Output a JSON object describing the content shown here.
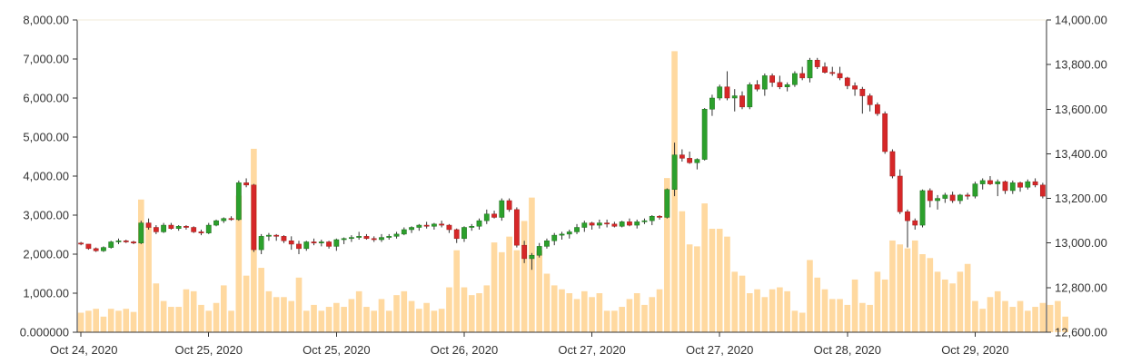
{
  "chart_data": {
    "type": "candlestick",
    "grid": false,
    "legend": "none",
    "colors": {
      "up": "#2ca02c",
      "down": "#d62728",
      "wick": "#333333",
      "volume": "#ffd9a0",
      "axis": "#333333"
    },
    "y_left": {
      "range": [
        0,
        8000
      ],
      "ticks": [
        "0.000000",
        "1,000.00",
        "2,000.00",
        "3,000.00",
        "4,000.00",
        "5,000.00",
        "6,000.00",
        "7,000.00",
        "8,000.00"
      ],
      "series": "volume"
    },
    "y_right": {
      "range": [
        12600,
        14000
      ],
      "ticks": [
        "12,600.00",
        "12,800.00",
        "13,000.00",
        "13,200.00",
        "13,400.00",
        "13,600.00",
        "13,800.00",
        "14,000.00"
      ],
      "series": "price"
    },
    "x_ticks": [
      "Oct 24, 2020",
      "Oct 25, 2020",
      "Oct 25, 2020",
      "Oct 26, 2020",
      "Oct 27, 2020",
      "Oct 27, 2020",
      "Oct 28, 2020",
      "Oct 29, 2020"
    ],
    "volume": [
      500,
      550,
      600,
      400,
      600,
      550,
      600,
      520,
      3400,
      2700,
      1250,
      800,
      650,
      650,
      1100,
      1050,
      700,
      550,
      750,
      1200,
      550,
      3500,
      1450,
      4700,
      1650,
      1050,
      900,
      900,
      800,
      1400,
      550,
      700,
      550,
      650,
      750,
      650,
      850,
      1050,
      650,
      550,
      850,
      550,
      950,
      1050,
      800,
      600,
      750,
      550,
      600,
      1150,
      2100,
      1150,
      950,
      1000,
      1200,
      2300,
      2050,
      2450,
      2100,
      2850,
      3450,
      2100,
      1500,
      1200,
      1100,
      1000,
      850,
      1050,
      900,
      1000,
      550,
      550,
      650,
      850,
      1000,
      700,
      900,
      1100,
      3950,
      7200,
      3100,
      2250,
      2200,
      3300,
      2650,
      2650,
      2450,
      1550,
      1450,
      1000,
      1100,
      900,
      1100,
      1150,
      1050,
      550,
      500,
      1850,
      1400,
      1100,
      850,
      850,
      700,
      1350,
      750,
      700,
      1550,
      1350,
      2350,
      2250,
      2150,
      2350,
      2000,
      1900,
      1550,
      1350,
      1250,
      1550,
      1750,
      800,
      600,
      900,
      1050,
      800,
      650,
      800,
      550,
      650,
      750,
      700,
      800,
      400
    ],
    "ohlc": [
      [
        13000,
        13005,
        12990,
        12995
      ],
      [
        12995,
        12995,
        12970,
        12975
      ],
      [
        12975,
        12980,
        12960,
        12965
      ],
      [
        12965,
        12985,
        12960,
        12980
      ],
      [
        12980,
        13010,
        12975,
        13005
      ],
      [
        13005,
        13020,
        12995,
        13010
      ],
      [
        13010,
        13015,
        13000,
        13005
      ],
      [
        13005,
        13010,
        12995,
        13000
      ],
      [
        13000,
        13100,
        12995,
        13090
      ],
      [
        13090,
        13110,
        13060,
        13070
      ],
      [
        13070,
        13080,
        13040,
        13050
      ],
      [
        13050,
        13090,
        13045,
        13080
      ],
      [
        13080,
        13090,
        13060,
        13065
      ],
      [
        13065,
        13080,
        13055,
        13075
      ],
      [
        13075,
        13080,
        13060,
        13070
      ],
      [
        13070,
        13075,
        13045,
        13050
      ],
      [
        13050,
        13060,
        13035,
        13045
      ],
      [
        13045,
        13090,
        13040,
        13080
      ],
      [
        13080,
        13105,
        13075,
        13100
      ],
      [
        13100,
        13115,
        13090,
        13110
      ],
      [
        13110,
        13120,
        13100,
        13105
      ],
      [
        13105,
        13280,
        13100,
        13270
      ],
      [
        13270,
        13290,
        13250,
        13260
      ],
      [
        13260,
        13265,
        12960,
        12970
      ],
      [
        12970,
        13040,
        12950,
        13030
      ],
      [
        13030,
        13045,
        13010,
        13035
      ],
      [
        13035,
        13040,
        13010,
        13030
      ],
      [
        13030,
        13035,
        13000,
        13010
      ],
      [
        13010,
        13030,
        12970,
        12995
      ],
      [
        12995,
        13010,
        12950,
        12975
      ],
      [
        12975,
        13010,
        12965,
        13005
      ],
      [
        13005,
        13020,
        12990,
        13000
      ],
      [
        13000,
        13015,
        12985,
        13005
      ],
      [
        13005,
        13010,
        12975,
        12985
      ],
      [
        12985,
        13020,
        12965,
        13015
      ],
      [
        13015,
        13025,
        12995,
        13020
      ],
      [
        13020,
        13035,
        13005,
        13025
      ],
      [
        13025,
        13050,
        13015,
        13030
      ],
      [
        13030,
        13040,
        13015,
        13020
      ],
      [
        13020,
        13030,
        13005,
        13015
      ],
      [
        13015,
        13040,
        13005,
        13025
      ],
      [
        13025,
        13040,
        13015,
        13030
      ],
      [
        13030,
        13050,
        13020,
        13040
      ],
      [
        13040,
        13070,
        13035,
        13060
      ],
      [
        13060,
        13075,
        13045,
        13070
      ],
      [
        13070,
        13085,
        13055,
        13080
      ],
      [
        13080,
        13095,
        13065,
        13075
      ],
      [
        13075,
        13090,
        13060,
        13085
      ],
      [
        13085,
        13100,
        13070,
        13080
      ],
      [
        13080,
        13085,
        13045,
        13060
      ],
      [
        13060,
        13065,
        13000,
        13020
      ],
      [
        13020,
        13075,
        13005,
        13070
      ],
      [
        13070,
        13085,
        13055,
        13075
      ],
      [
        13075,
        13110,
        13060,
        13100
      ],
      [
        13100,
        13150,
        13085,
        13130
      ],
      [
        13130,
        13145,
        13110,
        13115
      ],
      [
        13115,
        13200,
        13100,
        13190
      ],
      [
        13190,
        13200,
        13140,
        13150
      ],
      [
        13150,
        13160,
        12980,
        12990
      ],
      [
        12990,
        13010,
        12910,
        12930
      ],
      [
        12930,
        12955,
        12880,
        12945
      ],
      [
        12945,
        13000,
        12935,
        12985
      ],
      [
        12985,
        13020,
        12975,
        13010
      ],
      [
        13010,
        13045,
        12990,
        13035
      ],
      [
        13035,
        13050,
        13015,
        13040
      ],
      [
        13040,
        13060,
        13020,
        13050
      ],
      [
        13050,
        13085,
        13040,
        13070
      ],
      [
        13070,
        13100,
        13050,
        13090
      ],
      [
        13090,
        13095,
        13060,
        13080
      ],
      [
        13080,
        13105,
        13065,
        13090
      ],
      [
        13090,
        13105,
        13070,
        13085
      ],
      [
        13085,
        13095,
        13070,
        13075
      ],
      [
        13075,
        13100,
        13070,
        13095
      ],
      [
        13095,
        13110,
        13075,
        13080
      ],
      [
        13080,
        13105,
        13065,
        13095
      ],
      [
        13095,
        13110,
        13085,
        13100
      ],
      [
        13100,
        13125,
        13080,
        13120
      ],
      [
        13120,
        13125,
        13105,
        13115
      ],
      [
        13115,
        13245,
        13110,
        13240
      ],
      [
        13240,
        13450,
        13210,
        13395
      ],
      [
        13395,
        13420,
        13365,
        13380
      ],
      [
        13380,
        13410,
        13355,
        13360
      ],
      [
        13360,
        13380,
        13330,
        13375
      ],
      [
        13375,
        13605,
        13370,
        13600
      ],
      [
        13600,
        13665,
        13570,
        13650
      ],
      [
        13650,
        13710,
        13640,
        13700
      ],
      [
        13700,
        13770,
        13640,
        13650
      ],
      [
        13650,
        13690,
        13590,
        13660
      ],
      [
        13660,
        13680,
        13600,
        13610
      ],
      [
        13610,
        13720,
        13600,
        13710
      ],
      [
        13710,
        13730,
        13680,
        13690
      ],
      [
        13690,
        13760,
        13660,
        13750
      ],
      [
        13750,
        13760,
        13700,
        13720
      ],
      [
        13720,
        13750,
        13690,
        13700
      ],
      [
        13700,
        13720,
        13680,
        13710
      ],
      [
        13710,
        13770,
        13700,
        13760
      ],
      [
        13760,
        13790,
        13730,
        13740
      ],
      [
        13740,
        13830,
        13720,
        13820
      ],
      [
        13820,
        13830,
        13780,
        13790
      ],
      [
        13790,
        13810,
        13760,
        13765
      ],
      [
        13765,
        13790,
        13750,
        13760
      ],
      [
        13760,
        13790,
        13730,
        13740
      ],
      [
        13740,
        13745,
        13690,
        13705
      ],
      [
        13705,
        13720,
        13660,
        13690
      ],
      [
        13690,
        13700,
        13580,
        13660
      ],
      [
        13660,
        13670,
        13590,
        13620
      ],
      [
        13620,
        13630,
        13570,
        13580
      ],
      [
        13580,
        13590,
        13400,
        13410
      ],
      [
        13410,
        13420,
        13290,
        13300
      ],
      [
        13300,
        13330,
        13130,
        13140
      ],
      [
        13140,
        13150,
        12980,
        13100
      ],
      [
        13100,
        13110,
        13060,
        13080
      ],
      [
        13080,
        13240,
        13070,
        13235
      ],
      [
        13235,
        13245,
        13160,
        13190
      ],
      [
        13190,
        13215,
        13150,
        13200
      ],
      [
        13200,
        13225,
        13180,
        13215
      ],
      [
        13215,
        13230,
        13180,
        13190
      ],
      [
        13190,
        13220,
        13175,
        13215
      ],
      [
        13215,
        13225,
        13195,
        13210
      ],
      [
        13210,
        13275,
        13200,
        13265
      ],
      [
        13265,
        13290,
        13240,
        13280
      ],
      [
        13280,
        13300,
        13260,
        13265
      ],
      [
        13265,
        13285,
        13210,
        13275
      ],
      [
        13275,
        13280,
        13220,
        13235
      ],
      [
        13235,
        13280,
        13220,
        13270
      ],
      [
        13270,
        13275,
        13230,
        13250
      ],
      [
        13250,
        13285,
        13240,
        13275
      ],
      [
        13275,
        13290,
        13250,
        13260
      ],
      [
        13260,
        13270,
        13200,
        13210
      ]
    ]
  }
}
